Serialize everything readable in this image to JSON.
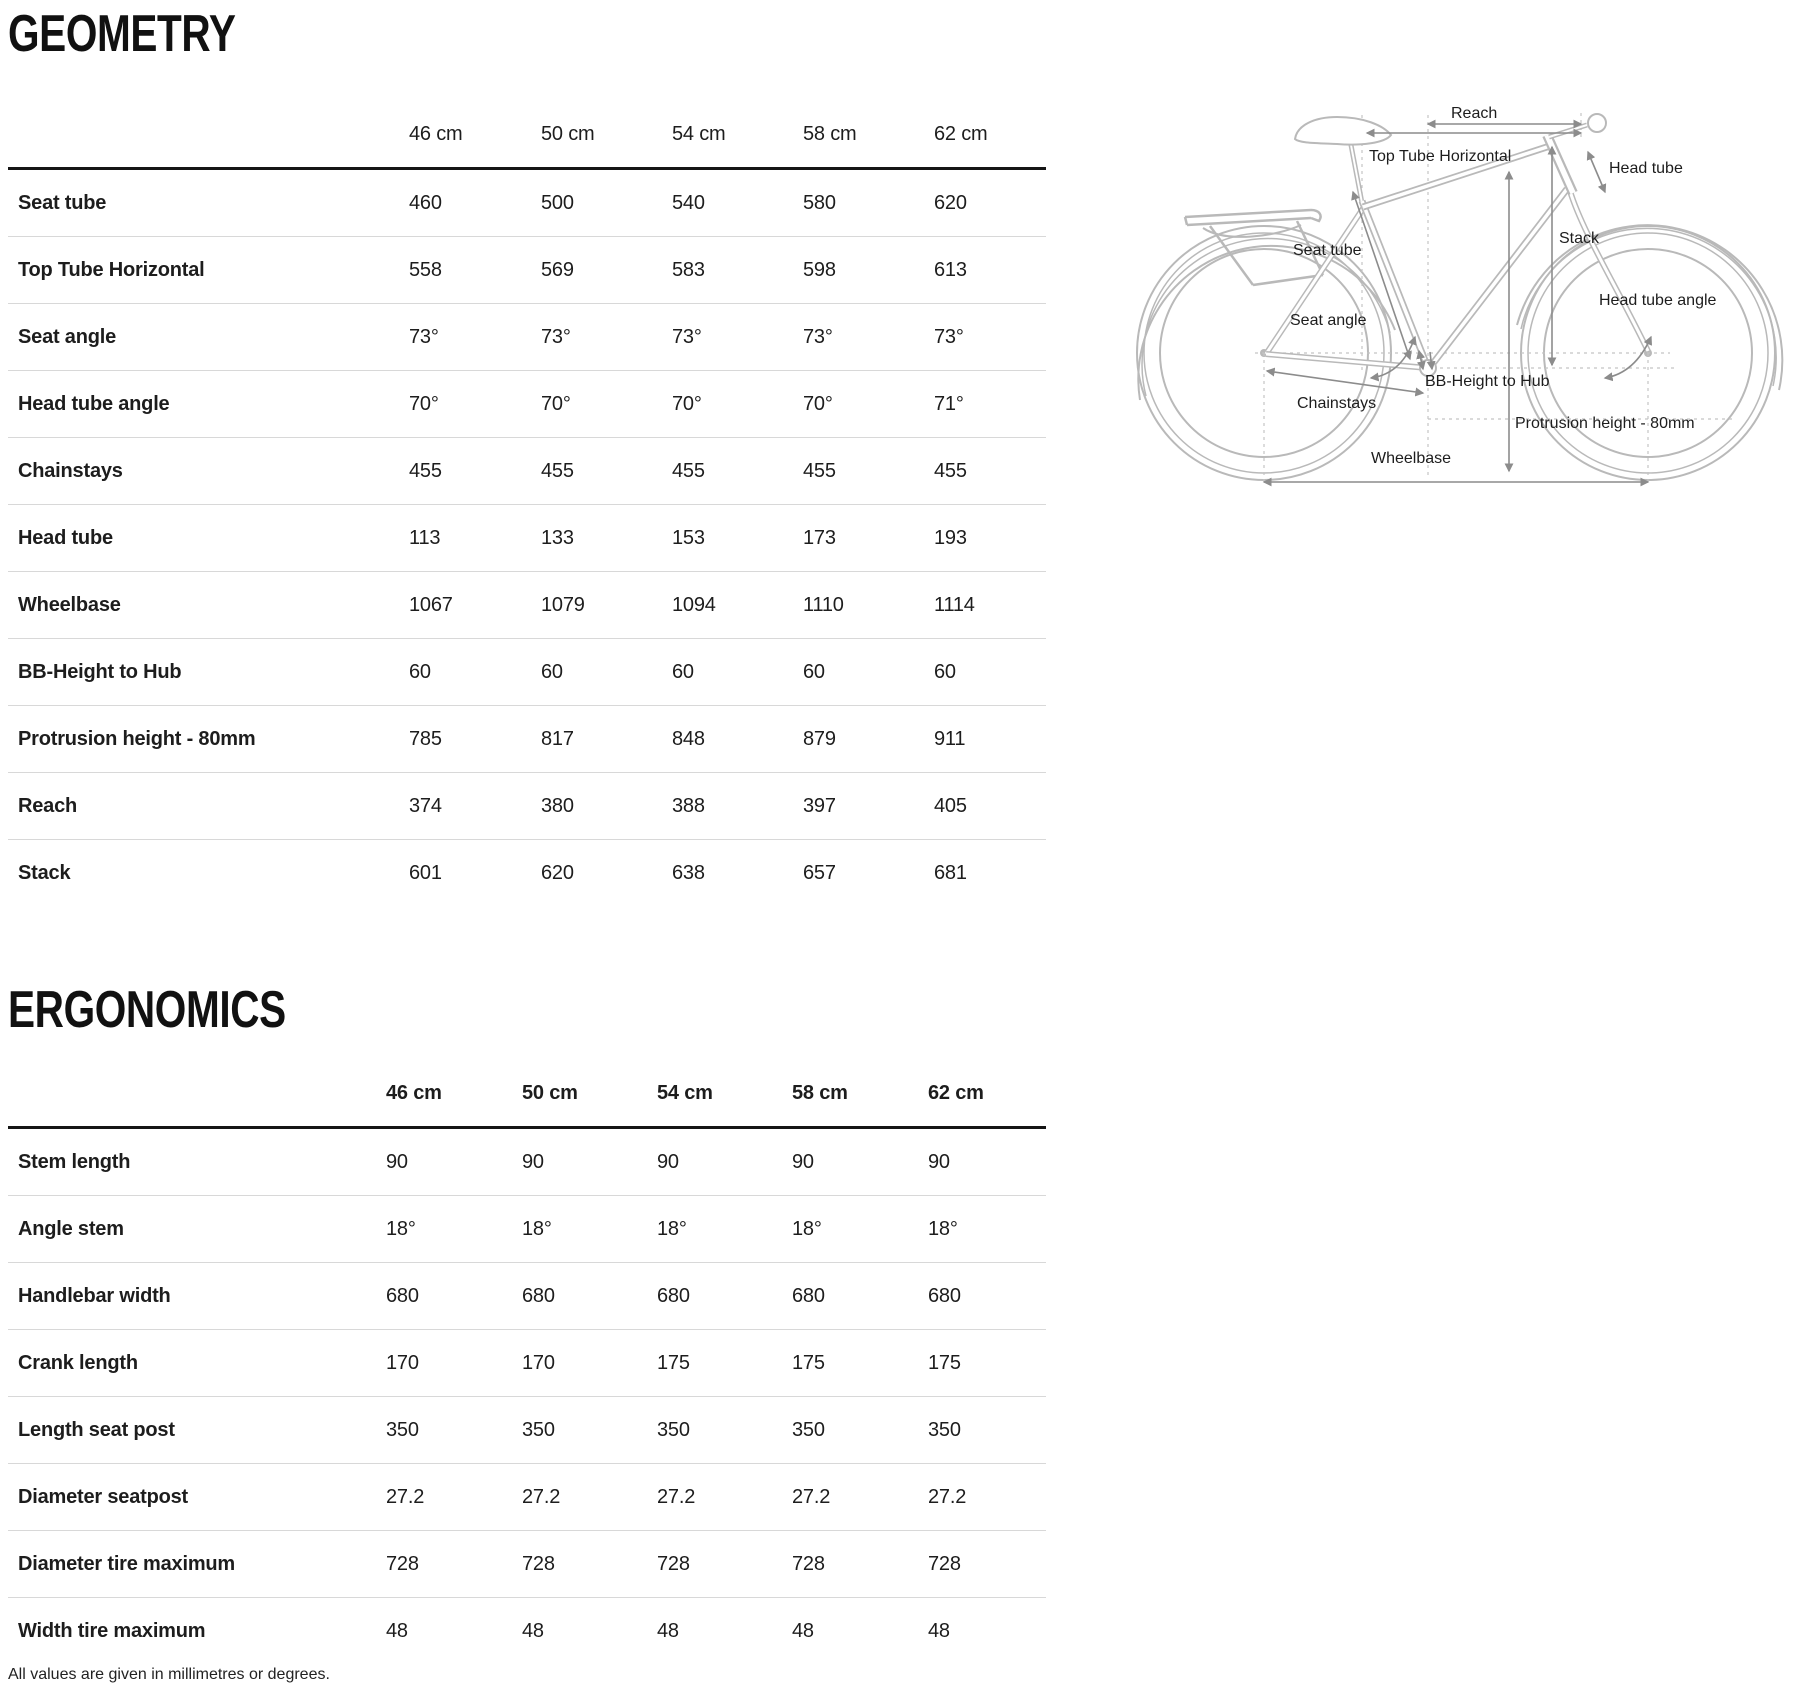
{
  "geometry": {
    "title": "GEOMETRY",
    "columns": [
      "46 cm",
      "50 cm",
      "54 cm",
      "58 cm",
      "62 cm"
    ],
    "rows": [
      {
        "label": "Seat tube",
        "values": [
          "460",
          "500",
          "540",
          "580",
          "620"
        ]
      },
      {
        "label": "Top Tube Horizontal",
        "values": [
          "558",
          "569",
          "583",
          "598",
          "613"
        ]
      },
      {
        "label": "Seat angle",
        "values": [
          "73°",
          "73°",
          "73°",
          "73°",
          "73°"
        ]
      },
      {
        "label": "Head tube angle",
        "values": [
          "70°",
          "70°",
          "70°",
          "70°",
          "71°"
        ]
      },
      {
        "label": "Chainstays",
        "values": [
          "455",
          "455",
          "455",
          "455",
          "455"
        ]
      },
      {
        "label": "Head tube",
        "values": [
          "113",
          "133",
          "153",
          "173",
          "193"
        ]
      },
      {
        "label": "Wheelbase",
        "values": [
          "1067",
          "1079",
          "1094",
          "1110",
          "1114"
        ]
      },
      {
        "label": "BB-Height to Hub",
        "values": [
          "60",
          "60",
          "60",
          "60",
          "60"
        ]
      },
      {
        "label": "Protrusion height - 80mm",
        "values": [
          "785",
          "817",
          "848",
          "879",
          "911"
        ]
      },
      {
        "label": "Reach",
        "values": [
          "374",
          "380",
          "388",
          "397",
          "405"
        ]
      },
      {
        "label": "Stack",
        "values": [
          "601",
          "620",
          "638",
          "657",
          "681"
        ]
      }
    ]
  },
  "ergonomics": {
    "title": "ERGONOMICS",
    "columns": [
      "46 cm",
      "50 cm",
      "54 cm",
      "58 cm",
      "62 cm"
    ],
    "rows": [
      {
        "label": "Stem length",
        "values": [
          "90",
          "90",
          "90",
          "90",
          "90"
        ]
      },
      {
        "label": "Angle stem",
        "values": [
          "18°",
          "18°",
          "18°",
          "18°",
          "18°"
        ]
      },
      {
        "label": "Handlebar width",
        "values": [
          "680",
          "680",
          "680",
          "680",
          "680"
        ]
      },
      {
        "label": "Crank length",
        "values": [
          "170",
          "170",
          "175",
          "175",
          "175"
        ]
      },
      {
        "label": "Length seat post",
        "values": [
          "350",
          "350",
          "350",
          "350",
          "350"
        ]
      },
      {
        "label": "Diameter seatpost",
        "values": [
          "27.2",
          "27.2",
          "27.2",
          "27.2",
          "27.2"
        ]
      },
      {
        "label": "Diameter tire maximum",
        "values": [
          "728",
          "728",
          "728",
          "728",
          "728"
        ]
      },
      {
        "label": "Width tire maximum",
        "values": [
          "48",
          "48",
          "48",
          "48",
          "48"
        ]
      }
    ]
  },
  "footnote": "All values are given in millimetres or degrees.",
  "diagram": {
    "labels": {
      "reach": "Reach",
      "top_tube_horizontal": "Top Tube Horizontal",
      "head_tube": "Head tube",
      "seat_tube": "Seat tube",
      "stack": "Stack",
      "seat_angle": "Seat angle",
      "head_tube_angle": "Head tube angle",
      "bb_height_to_hub": "BB-Height to Hub",
      "chainstays": "Chainstays",
      "protrusion_height": "Protrusion height - 80mm",
      "wheelbase": "Wheelbase"
    },
    "colors": {
      "bike_line": "#b9b9b9",
      "dimension_line": "#8c8c8c",
      "guide_line": "#c4c4c4",
      "label_text": "#1d1d1d"
    }
  }
}
